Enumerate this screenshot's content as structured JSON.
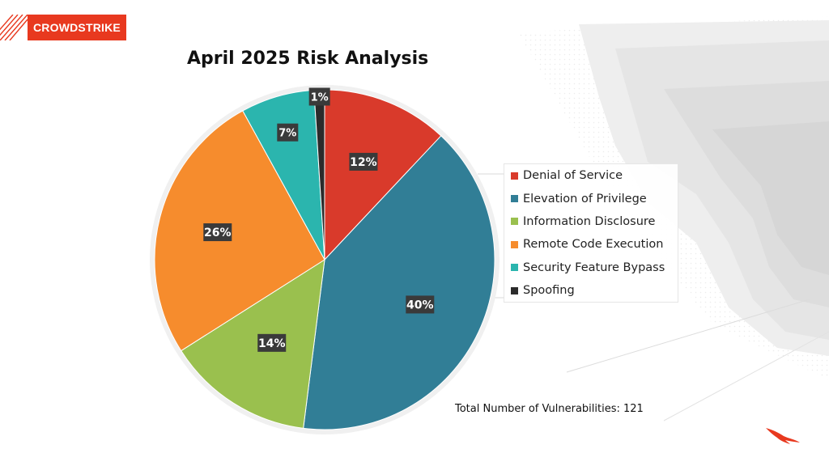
{
  "brand": {
    "name": "CROWDSTRIKE"
  },
  "total": {
    "text": "Total Number of Vulnerabilities: 121"
  },
  "icons": {
    "brand_logo": "crowdstrike-falcon-icon"
  },
  "colors": {
    "accent": "#e8391f"
  },
  "chart_data": {
    "type": "pie",
    "title": "April 2025 Risk Analysis",
    "legend_position": "right",
    "categories": [
      "Denial of Service",
      "Elevation of Privilege",
      "Information Disclosure",
      "Remote Code Execution",
      "Security Feature Bypass",
      "Spoofing"
    ],
    "values": [
      12,
      40,
      14,
      26,
      7,
      1
    ],
    "labels": [
      "12%",
      "40%",
      "14%",
      "26%",
      "7%",
      "1%"
    ],
    "colors": [
      "#d93a2b",
      "#317e96",
      "#9ac04e",
      "#f68c2d",
      "#2bb5ae",
      "#2b2b2b"
    ]
  }
}
